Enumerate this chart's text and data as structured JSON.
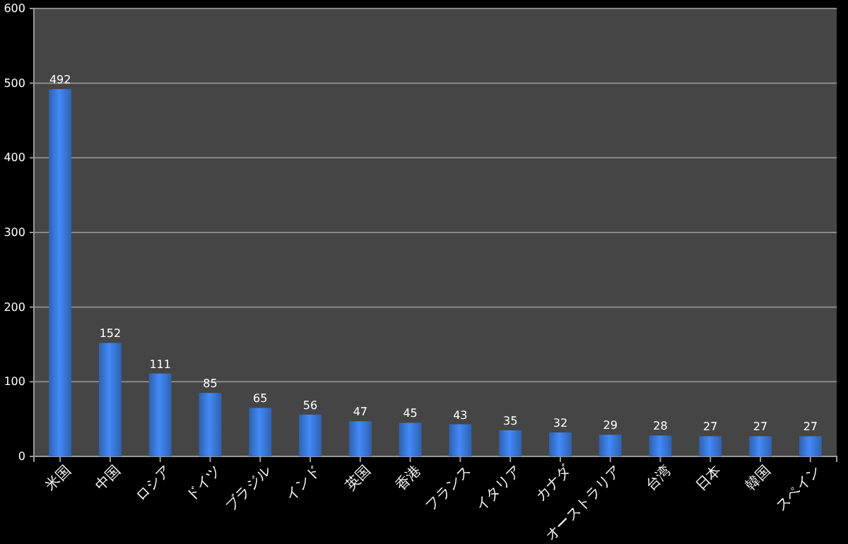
{
  "chart_data": {
    "type": "bar",
    "categories": [
      "米国",
      "中国",
      "ロシア",
      "ドイツ",
      "ブラジル",
      "インド",
      "英国",
      "香港",
      "フランス",
      "イタリア",
      "カナダ",
      "オーストラリア",
      "台湾",
      "日本",
      "韓国",
      "スペイン"
    ],
    "values": [
      492,
      152,
      111,
      85,
      65,
      56,
      47,
      45,
      43,
      35,
      32,
      29,
      28,
      27,
      27,
      27
    ],
    "color": "#3a78d8",
    "ylim": [
      0,
      600
    ],
    "yticks": [
      0,
      100,
      200,
      300,
      400,
      500,
      600
    ],
    "grid": "y",
    "data_labels": true
  }
}
